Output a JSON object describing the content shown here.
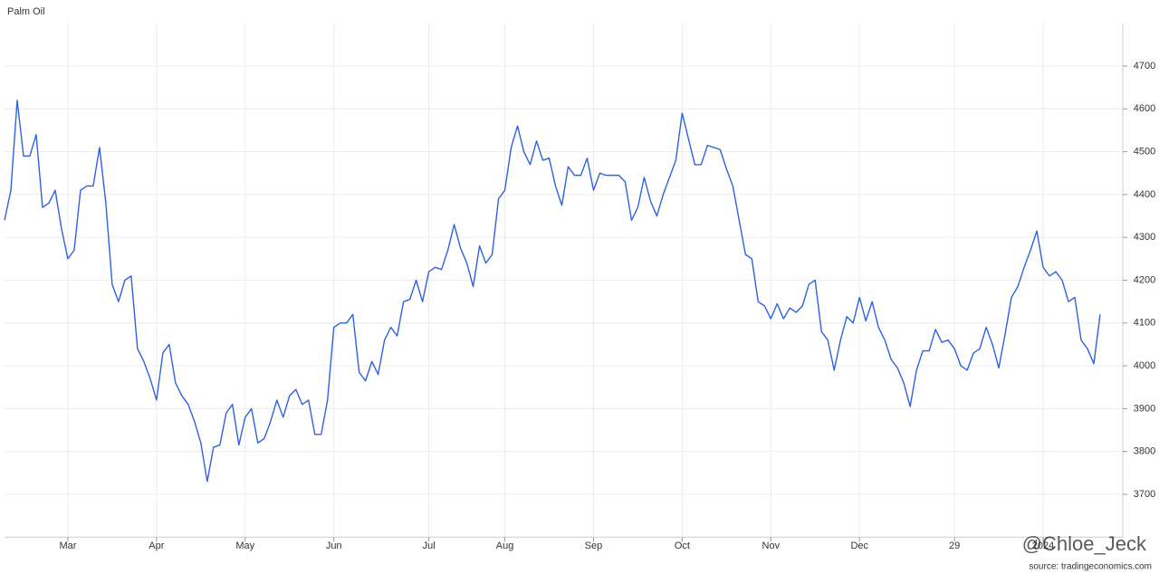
{
  "chart_data": {
    "type": "line",
    "title": "Palm Oil",
    "source": "source: tradingeconomics.com",
    "watermark": "@Chloe_Jeck",
    "categories": [
      null,
      null,
      null,
      null,
      null,
      null,
      null,
      null,
      null,
      null,
      "Mar",
      null,
      null,
      null,
      null,
      null,
      null,
      null,
      null,
      null,
      null,
      null,
      null,
      null,
      "Apr",
      null,
      null,
      null,
      null,
      null,
      null,
      null,
      null,
      null,
      null,
      null,
      null,
      null,
      "May",
      null,
      null,
      null,
      null,
      null,
      null,
      null,
      null,
      null,
      null,
      null,
      null,
      null,
      "Jun",
      null,
      null,
      null,
      null,
      null,
      null,
      null,
      null,
      null,
      null,
      null,
      null,
      null,
      null,
      "Jul",
      null,
      null,
      null,
      null,
      null,
      null,
      null,
      null,
      null,
      null,
      null,
      "Aug",
      null,
      null,
      null,
      null,
      null,
      null,
      null,
      null,
      null,
      null,
      null,
      null,
      null,
      "Sep",
      null,
      null,
      null,
      null,
      null,
      null,
      null,
      null,
      null,
      null,
      null,
      null,
      null,
      "Oct",
      null,
      null,
      null,
      null,
      null,
      null,
      null,
      null,
      null,
      null,
      null,
      null,
      null,
      "Nov",
      null,
      null,
      null,
      null,
      null,
      null,
      null,
      null,
      null,
      null,
      null,
      null,
      null,
      "Dec",
      null,
      null,
      null,
      null,
      null,
      null,
      null,
      null,
      null,
      null,
      null,
      null,
      null,
      null,
      "29",
      null,
      null,
      null,
      null,
      null,
      null,
      null,
      null,
      null,
      null,
      null,
      null,
      null,
      "2024",
      null,
      null,
      null,
      null,
      null,
      null,
      null,
      null,
      null
    ],
    "values": [
      4340,
      4410,
      4620,
      4490,
      4490,
      4540,
      4370,
      4380,
      4410,
      4320,
      4250,
      4270,
      4410,
      4420,
      4420,
      4510,
      4380,
      4190,
      4150,
      4200,
      4210,
      4040,
      4010,
      3970,
      3920,
      4030,
      4050,
      3960,
      3930,
      3910,
      3870,
      3820,
      3730,
      3810,
      3815,
      3890,
      3910,
      3815,
      3880,
      3900,
      3820,
      3830,
      3870,
      3920,
      3880,
      3930,
      3945,
      3910,
      3920,
      3840,
      3840,
      3920,
      4090,
      4100,
      4100,
      4120,
      3985,
      3965,
      4010,
      3980,
      4060,
      4090,
      4070,
      4150,
      4155,
      4200,
      4150,
      4220,
      4230,
      4225,
      4270,
      4330,
      4275,
      4240,
      4185,
      4280,
      4240,
      4260,
      4390,
      4410,
      4510,
      4560,
      4500,
      4470,
      4525,
      4480,
      4485,
      4420,
      4375,
      4465,
      4445,
      4445,
      4485,
      4410,
      4450,
      4445,
      4445,
      4445,
      4430,
      4340,
      4370,
      4440,
      4385,
      4350,
      4400,
      4440,
      4480,
      4590,
      4530,
      4470,
      4470,
      4515,
      4510,
      4505,
      4460,
      4420,
      4340,
      4260,
      4250,
      4150,
      4140,
      4110,
      4145,
      4110,
      4135,
      4125,
      4140,
      4190,
      4200,
      4080,
      4060,
      3990,
      4060,
      4115,
      4100,
      4160,
      4105,
      4150,
      4090,
      4060,
      4015,
      3995,
      3960,
      3905,
      3990,
      4035,
      4035,
      4085,
      4055,
      4060,
      4040,
      4000,
      3990,
      4030,
      4040,
      4090,
      4050,
      3995,
      4075,
      4160,
      4185,
      4230,
      4270,
      4315,
      4230,
      4210,
      4220,
      4200,
      4150,
      4160,
      4060,
      4040,
      4005,
      4120
    ],
    "color": "#2f62e0",
    "ylim": [
      3600,
      4800
    ],
    "yticks": [
      3700,
      3800,
      3900,
      4000,
      4100,
      4200,
      4300,
      4400,
      4500,
      4600,
      4700
    ],
    "grid": true
  }
}
